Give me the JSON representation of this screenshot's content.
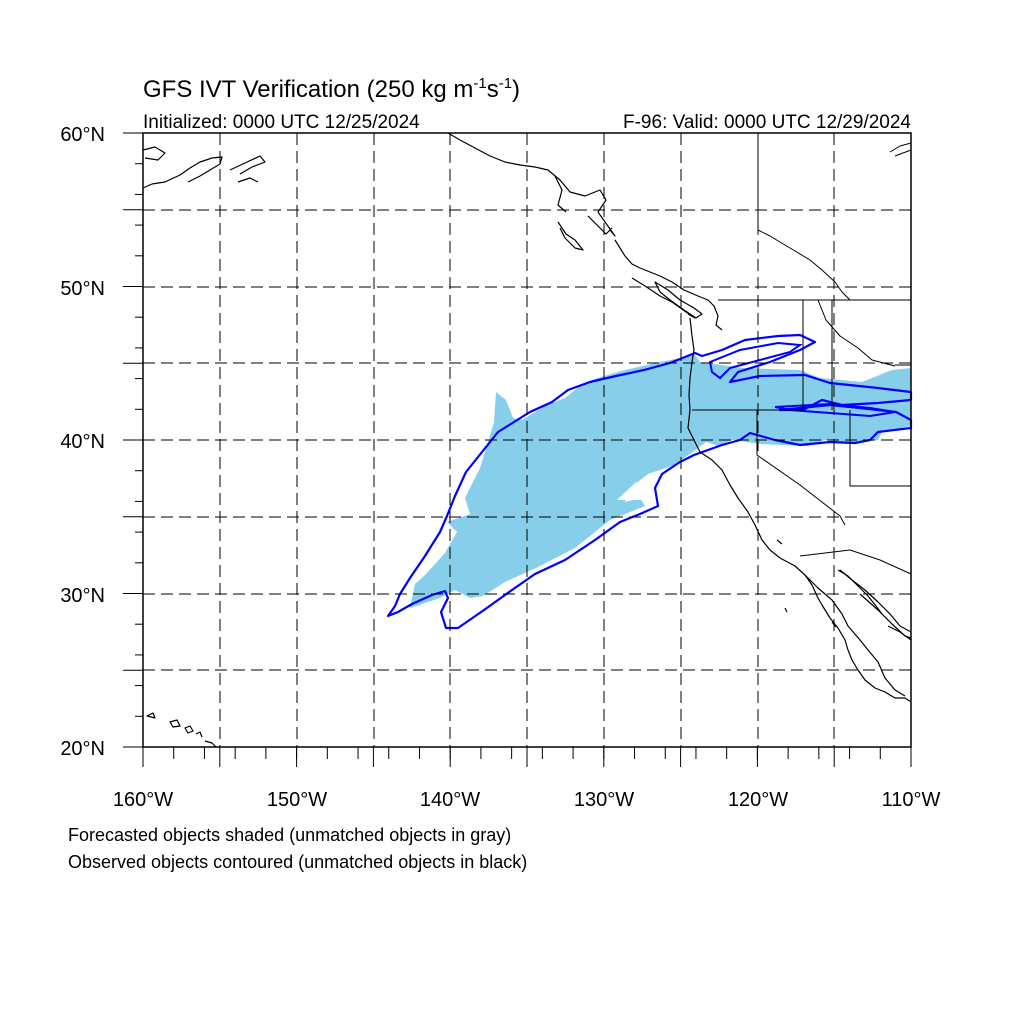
{
  "title": {
    "main": "GFS IVT Verification (250 kg m",
    "sup1": "-1",
    "mid": "s",
    "sup2": "-1",
    "end": ")"
  },
  "initialized": "Initialized: 0000 UTC 12/25/2024",
  "valid": "F-96: Valid: 0000 UTC 12/29/2024",
  "lat_labels": [
    "60°N",
    "50°N",
    "40°N",
    "30°N",
    "20°N"
  ],
  "lon_labels": [
    "160°W",
    "150°W",
    "140°W",
    "130°W",
    "120°W",
    "110°W"
  ],
  "caption_forecast": "Forecasted objects shaded (unmatched objects in gray)",
  "caption_observed": "Observed objects contoured (unmatched objects in black)",
  "colors": {
    "forecast_fill": "#87ceeb",
    "observed_contour": "#0000ff",
    "coastline": "#000000",
    "grid": "#000000"
  },
  "map_extent": {
    "lon_min": -160,
    "lon_max": -110,
    "lat_min": 20,
    "lat_max": 60
  }
}
